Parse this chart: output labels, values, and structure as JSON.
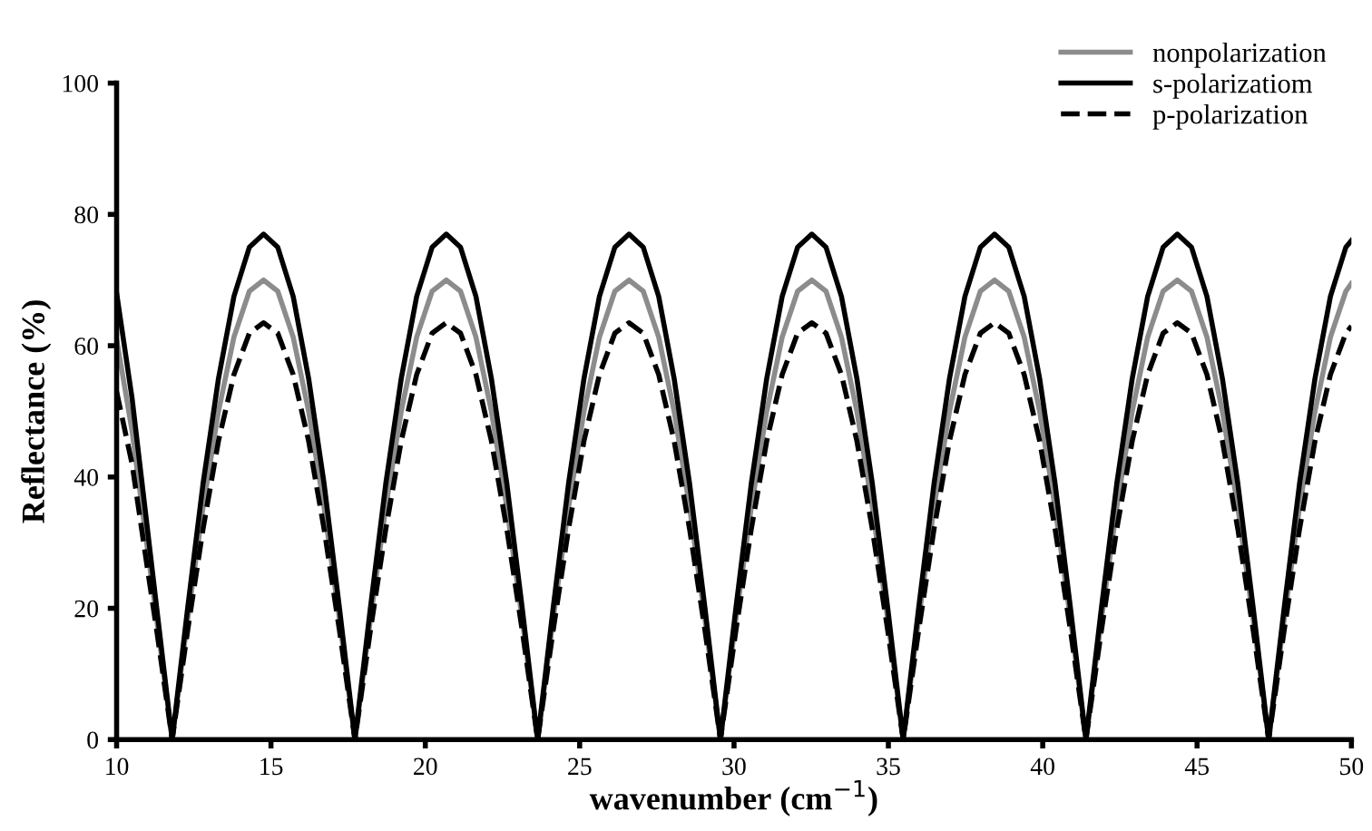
{
  "chart_data": {
    "type": "line",
    "xlabel": "wavenumber (cm$^{−1}$)",
    "ylabel": "Reflectance (%)",
    "x": [
      10,
      10.5,
      11,
      11.3,
      11.8,
      12.3,
      12.8,
      13.3,
      13.8,
      14.3,
      14.76,
      15.22,
      15.72,
      16.22,
      16.72,
      17.22,
      17.72,
      18.22,
      18.72,
      19.22,
      19.72,
      20.22,
      20.68,
      21.14,
      21.64,
      22.14,
      22.64,
      23.14,
      23.64,
      24.14,
      24.64,
      25.14,
      25.64,
      26.14,
      26.6,
      27.06,
      27.56,
      28.06,
      28.56,
      29.06,
      29.56,
      30.06,
      30.56,
      31.06,
      31.56,
      32.06,
      32.52,
      32.98,
      33.48,
      33.98,
      34.48,
      34.98,
      35.48,
      35.98,
      36.48,
      36.98,
      37.48,
      37.98,
      38.44,
      38.9,
      39.4,
      39.9,
      40.4,
      40.9,
      41.4,
      41.9,
      42.4,
      42.9,
      43.4,
      43.9,
      44.36,
      44.82,
      45.32,
      45.82,
      46.32,
      46.82,
      47.32,
      47.82,
      48.32,
      48.82,
      49.32,
      49.82,
      50
    ],
    "series": [
      {
        "name": "nonpolarization",
        "color": "#8c8c8c",
        "line_style": "solid",
        "values": [
          61,
          47,
          29,
          18.3,
          0,
          18.3,
          35.4,
          50,
          61.3,
          68.3,
          70,
          68.3,
          61.3,
          50,
          35.4,
          18.3,
          0,
          18.3,
          35.4,
          50,
          61.3,
          68.3,
          70,
          68.3,
          61.3,
          50,
          35.4,
          18.3,
          0,
          18.3,
          35.4,
          50,
          61.3,
          68.3,
          70,
          68.3,
          61.3,
          50,
          35.4,
          18.3,
          0,
          18.3,
          35.4,
          50,
          61.3,
          68.3,
          70,
          68.3,
          61.3,
          50,
          35.4,
          18.3,
          0,
          18.3,
          35.4,
          50,
          61.3,
          68.3,
          70,
          68.3,
          61.3,
          50,
          35.4,
          18.3,
          0,
          18.3,
          35.4,
          50,
          61.3,
          68.3,
          70,
          68.3,
          61.3,
          50,
          35.4,
          18.3,
          0,
          18.3,
          35.4,
          50,
          61.3,
          68.3,
          69.5
        ]
      },
      {
        "name": "s-polarizatiom",
        "color": "#000000",
        "line_style": "solid",
        "values": [
          68,
          52,
          32,
          20,
          0,
          20,
          39,
          55,
          67.5,
          75,
          77,
          75,
          67.5,
          55,
          39,
          20,
          0,
          20,
          39,
          55,
          67.5,
          75,
          77,
          75,
          67.5,
          55,
          39,
          20,
          0,
          20,
          39,
          55,
          67.5,
          75,
          77,
          75,
          67.5,
          55,
          39,
          20,
          0,
          20,
          39,
          55,
          67.5,
          75,
          77,
          75,
          67.5,
          55,
          39,
          20,
          0,
          20,
          39,
          55,
          67.5,
          75,
          77,
          75,
          67.5,
          55,
          39,
          20,
          0,
          20,
          39,
          55,
          67.5,
          75,
          77,
          75,
          67.5,
          55,
          39,
          20,
          0,
          20,
          39,
          55,
          67.5,
          75,
          76
        ]
      },
      {
        "name": "p-polarization",
        "color": "#000000",
        "line_style": "dashed",
        "values": [
          53,
          42,
          26,
          16.6,
          0,
          16.6,
          32.1,
          45.5,
          55.6,
          61.9,
          63.5,
          61.9,
          55.6,
          45.5,
          32.1,
          16.6,
          0,
          16.6,
          32.1,
          45.5,
          55.6,
          61.9,
          63.5,
          61.9,
          55.6,
          45.5,
          32.1,
          16.6,
          0,
          16.6,
          32.1,
          45.5,
          55.6,
          61.9,
          63.5,
          61.9,
          55.6,
          45.5,
          32.1,
          16.6,
          0,
          16.6,
          32.1,
          45.5,
          55.6,
          61.9,
          63.5,
          61.9,
          55.6,
          45.5,
          32.1,
          16.6,
          0,
          16.6,
          32.1,
          45.5,
          55.6,
          61.9,
          63.5,
          61.9,
          55.6,
          45.5,
          32.1,
          16.6,
          0,
          16.6,
          32.1,
          45.5,
          55.6,
          61.9,
          63.5,
          61.9,
          55.6,
          45.5,
          32.1,
          16.6,
          0,
          16.6,
          32.1,
          45.5,
          55.6,
          61.9,
          63
        ]
      }
    ],
    "xlim": [
      10,
      50
    ],
    "xticks": [
      10,
      15,
      20,
      25,
      30,
      35,
      40,
      45,
      50
    ],
    "ylim": [
      0,
      100
    ],
    "yticks": [
      0,
      20,
      40,
      60,
      80,
      100
    ],
    "grid": false,
    "legend": "top right",
    "marker": "none"
  }
}
